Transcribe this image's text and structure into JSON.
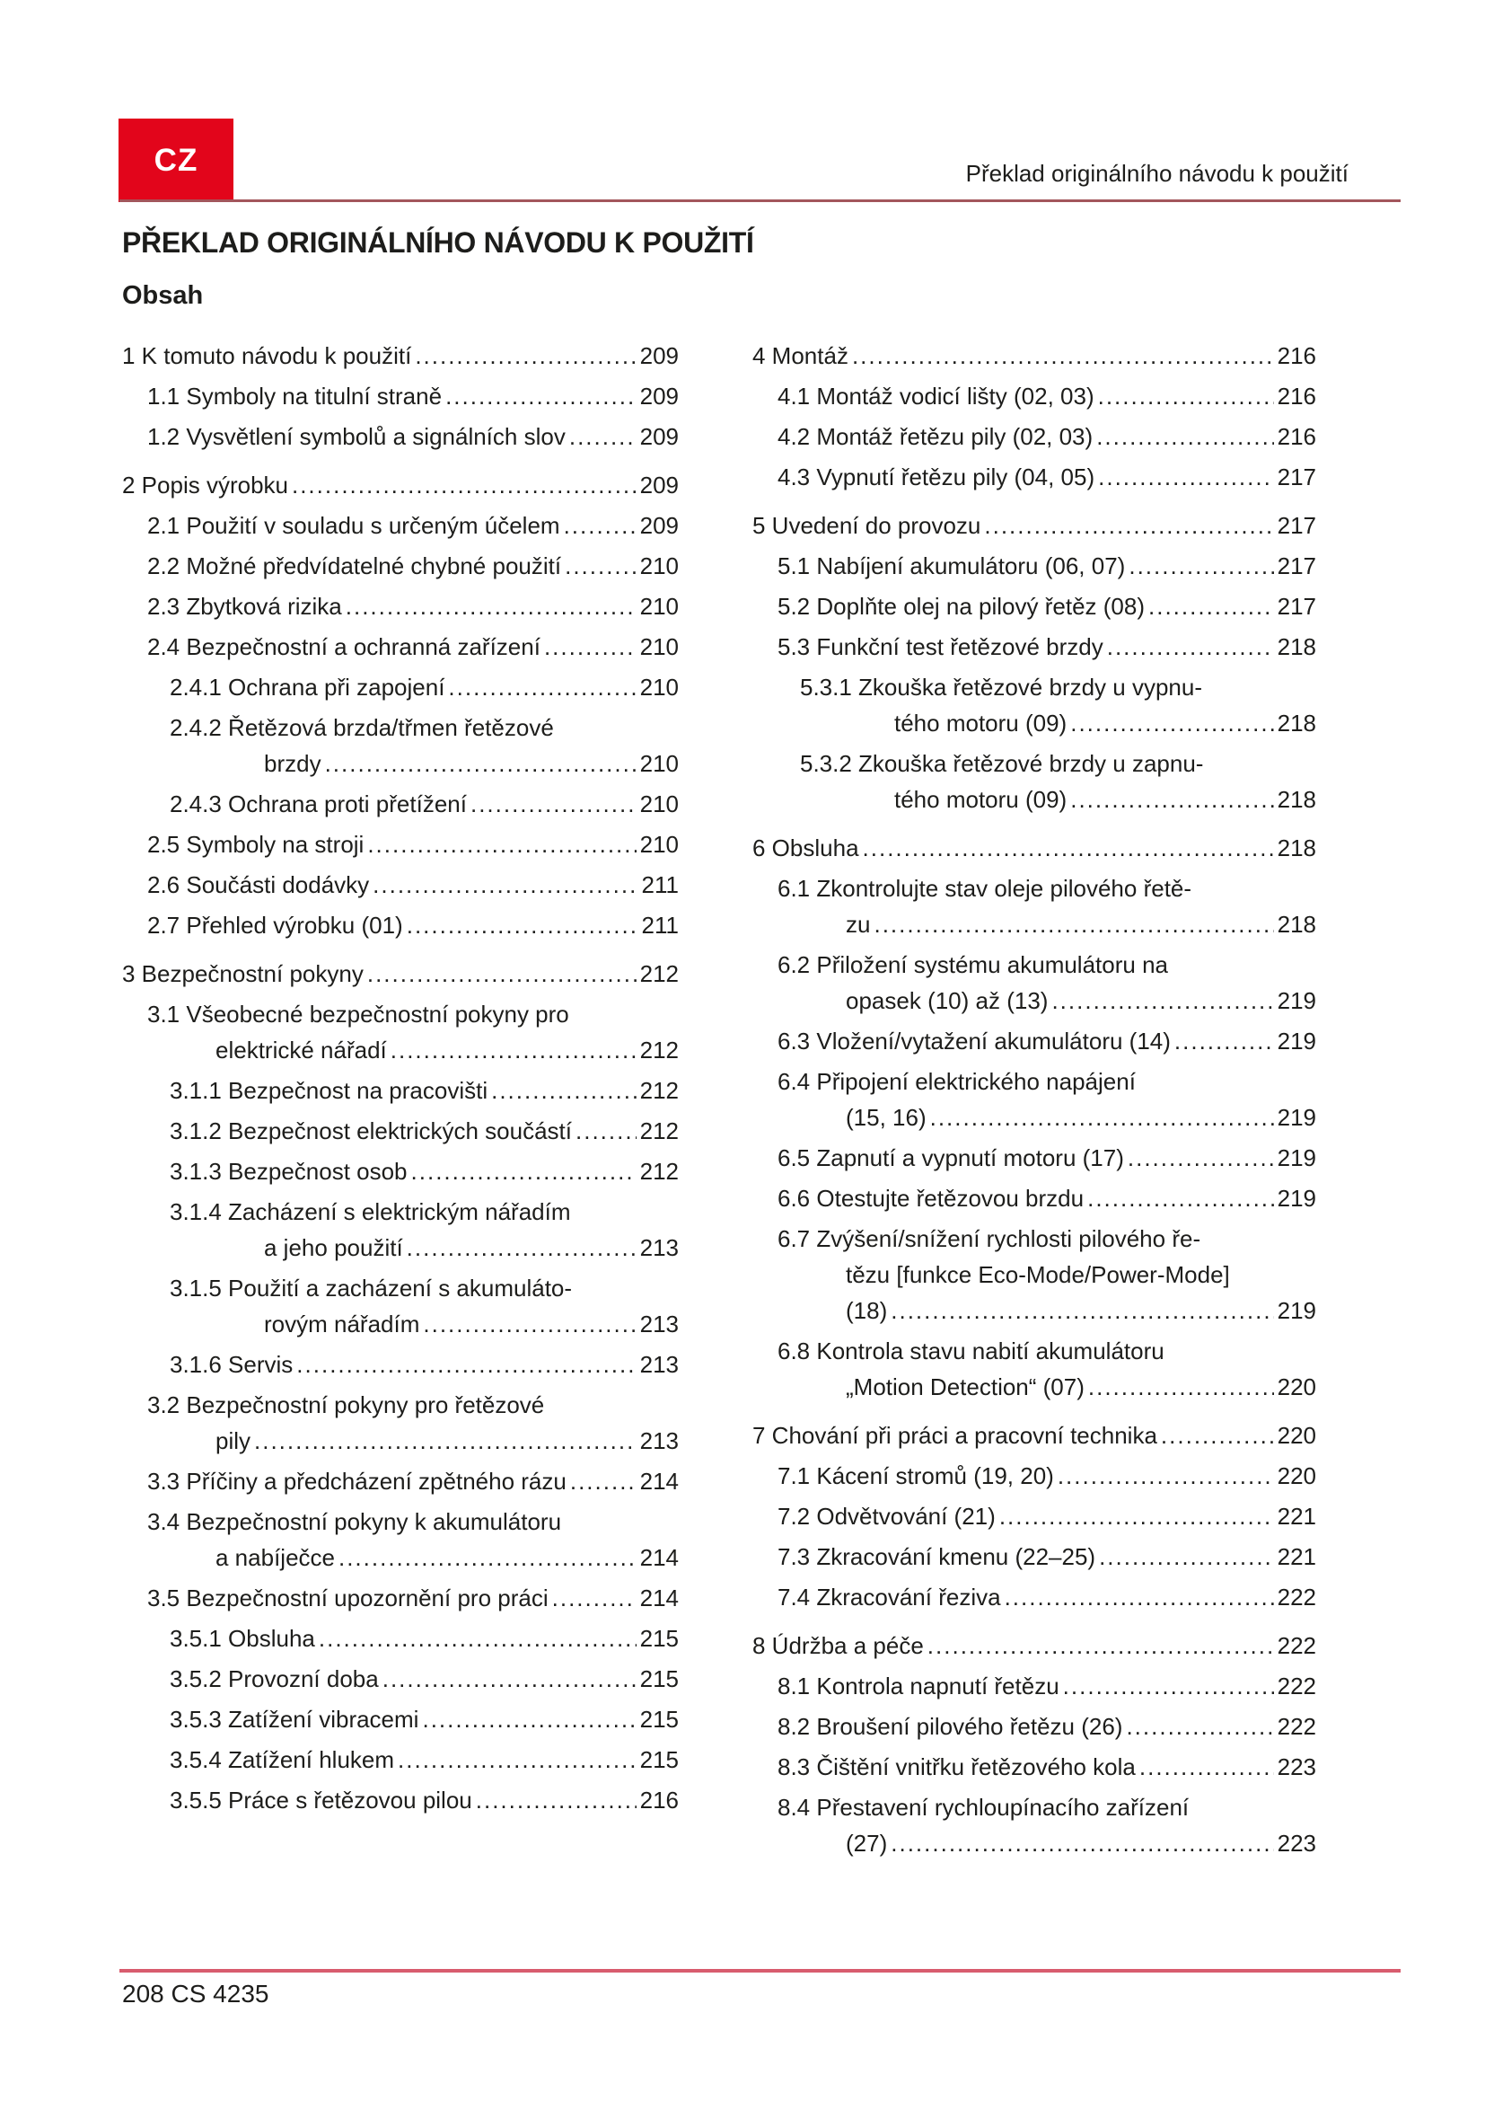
{
  "page": {
    "lang_badge": "CZ",
    "header_right": "Překlad originálního návodu k použití",
    "title": "PŘEKLAD ORIGINÁLNÍHO NÁVODU K POUŽITÍ",
    "subtitle": "Obsah",
    "footer": "208 CS 4235"
  },
  "colors": {
    "badge_red": "#e2051b",
    "top_rule": "#a3565c",
    "bottom_rule": "#d85c6e",
    "text": "#1d1d1b"
  },
  "toc": {
    "left_column": [
      {
        "level": 1,
        "lines": [
          "1 K tomuto návodu k použití"
        ],
        "page": "209"
      },
      {
        "level": 2,
        "lines": [
          "1.1 Symboly na titulní straně"
        ],
        "page": "209"
      },
      {
        "level": 2,
        "lines": [
          "1.2 Vysvětlení symbolů a signálních slov"
        ],
        "page": "209"
      },
      {
        "level": 1,
        "lines": [
          "2 Popis výrobku"
        ],
        "page": "209"
      },
      {
        "level": 2,
        "lines": [
          "2.1 Použití v souladu s určeným účelem"
        ],
        "page": "209"
      },
      {
        "level": 2,
        "lines": [
          "2.2 Možné předvídatelné chybné použití"
        ],
        "page": "210"
      },
      {
        "level": 2,
        "lines": [
          "2.3 Zbytková rizika"
        ],
        "page": "210"
      },
      {
        "level": 2,
        "lines": [
          "2.4 Bezpečnostní a ochranná zařízení"
        ],
        "page": "210"
      },
      {
        "level": 3,
        "lines": [
          "2.4.1 Ochrana při zapojení"
        ],
        "page": "210"
      },
      {
        "level": 3,
        "lines": [
          "2.4.2 Řetězová brzda/třmen řetězové",
          "brzdy"
        ],
        "page": "210"
      },
      {
        "level": 3,
        "lines": [
          "2.4.3 Ochrana proti přetížení"
        ],
        "page": "210"
      },
      {
        "level": 2,
        "lines": [
          "2.5 Symboly na stroji"
        ],
        "page": "210"
      },
      {
        "level": 2,
        "lines": [
          "2.6 Součásti dodávky"
        ],
        "page": "211"
      },
      {
        "level": 2,
        "lines": [
          "2.7 Přehled výrobku (01)"
        ],
        "page": "211"
      },
      {
        "level": 1,
        "lines": [
          "3 Bezpečnostní pokyny"
        ],
        "page": "212"
      },
      {
        "level": 2,
        "lines": [
          "3.1 Všeobecné bezpečnostní pokyny pro",
          "elektrické nářadí"
        ],
        "page": "212"
      },
      {
        "level": 3,
        "lines": [
          "3.1.1 Bezpečnost na pracovišti"
        ],
        "page": "212"
      },
      {
        "level": 3,
        "lines": [
          "3.1.2 Bezpečnost elektrických součástí"
        ],
        "page": "212"
      },
      {
        "level": 3,
        "lines": [
          "3.1.3 Bezpečnost osob"
        ],
        "page": "212"
      },
      {
        "level": 3,
        "lines": [
          "3.1.4 Zacházení s elektrickým nářadím",
          "a jeho použití"
        ],
        "page": "213"
      },
      {
        "level": 3,
        "lines": [
          "3.1.5 Použití a zacházení s akumuláto-",
          "rovým nářadím"
        ],
        "page": "213"
      },
      {
        "level": 3,
        "lines": [
          "3.1.6 Servis"
        ],
        "page": "213"
      },
      {
        "level": 2,
        "lines": [
          "3.2 Bezpečnostní pokyny pro řetězové",
          "pily"
        ],
        "page": "213"
      },
      {
        "level": 2,
        "lines": [
          "3.3 Příčiny a předcházení zpětného rázu"
        ],
        "page": "214"
      },
      {
        "level": 2,
        "lines": [
          "3.4 Bezpečnostní pokyny k akumulátoru",
          "a nabíječce"
        ],
        "page": "214"
      },
      {
        "level": 2,
        "lines": [
          "3.5 Bezpečnostní upozornění pro práci"
        ],
        "page": "214"
      },
      {
        "level": 3,
        "lines": [
          "3.5.1 Obsluha"
        ],
        "page": "215"
      },
      {
        "level": 3,
        "lines": [
          "3.5.2 Provozní doba"
        ],
        "page": "215"
      },
      {
        "level": 3,
        "lines": [
          "3.5.3 Zatížení vibracemi"
        ],
        "page": "215"
      },
      {
        "level": 3,
        "lines": [
          "3.5.4 Zatížení hlukem"
        ],
        "page": "215"
      },
      {
        "level": 3,
        "lines": [
          "3.5.5 Práce s řetězovou pilou"
        ],
        "page": "216"
      }
    ],
    "right_column": [
      {
        "level": 1,
        "lines": [
          "4 Montáž"
        ],
        "page": "216"
      },
      {
        "level": 2,
        "lines": [
          "4.1 Montáž vodicí lišty (02, 03)"
        ],
        "page": "216"
      },
      {
        "level": 2,
        "lines": [
          "4.2 Montáž řetězu pily (02, 03)"
        ],
        "page": "216"
      },
      {
        "level": 2,
        "lines": [
          "4.3 Vypnutí řetězu pily (04, 05)"
        ],
        "page": "217"
      },
      {
        "level": 1,
        "lines": [
          "5 Uvedení do provozu"
        ],
        "page": "217"
      },
      {
        "level": 2,
        "lines": [
          "5.1 Nabíjení akumulátoru (06, 07)"
        ],
        "page": "217"
      },
      {
        "level": 2,
        "lines": [
          "5.2 Doplňte olej na pilový řetěz (08)"
        ],
        "page": "217"
      },
      {
        "level": 2,
        "lines": [
          "5.3 Funkční test řetězové brzdy"
        ],
        "page": "218"
      },
      {
        "level": 3,
        "lines": [
          "5.3.1 Zkouška řetězové brzdy u vypnu-",
          "tého motoru (09)"
        ],
        "page": "218"
      },
      {
        "level": 3,
        "lines": [
          "5.3.2 Zkouška řetězové brzdy u zapnu-",
          "tého motoru (09)"
        ],
        "page": "218"
      },
      {
        "level": 1,
        "lines": [
          "6 Obsluha"
        ],
        "page": "218"
      },
      {
        "level": 2,
        "lines": [
          "6.1 Zkontrolujte stav oleje pilového řetě-",
          "zu"
        ],
        "page": "218"
      },
      {
        "level": 2,
        "lines": [
          "6.2 Přiložení systému akumulátoru na",
          "opasek (10) až (13)"
        ],
        "page": "219"
      },
      {
        "level": 2,
        "lines": [
          "6.3 Vložení/vytažení akumulátoru (14)"
        ],
        "page": "219"
      },
      {
        "level": 2,
        "lines": [
          "6.4 Připojení elektrického napájení",
          "(15, 16)"
        ],
        "page": "219"
      },
      {
        "level": 2,
        "lines": [
          "6.5 Zapnutí a vypnutí motoru (17)"
        ],
        "page": "219"
      },
      {
        "level": 2,
        "lines": [
          "6.6 Otestujte řetězovou brzdu"
        ],
        "page": "219"
      },
      {
        "level": 2,
        "lines": [
          "6.7 Zvýšení/snížení rychlosti pilového ře-",
          "tězu [funkce Eco-Mode/Power-Mode]",
          "(18)"
        ],
        "page": "219"
      },
      {
        "level": 2,
        "lines": [
          "6.8 Kontrola stavu nabití akumulátoru",
          "„Motion Detection“ (07)"
        ],
        "page": "220"
      },
      {
        "level": 1,
        "lines": [
          "7 Chování při práci a pracovní technika"
        ],
        "page": "220"
      },
      {
        "level": 2,
        "lines": [
          "7.1 Kácení stromů (19, 20)"
        ],
        "page": "220"
      },
      {
        "level": 2,
        "lines": [
          "7.2 Odvětvování (21)"
        ],
        "page": "221"
      },
      {
        "level": 2,
        "lines": [
          "7.3 Zkracování kmenu (22–25)"
        ],
        "page": "221"
      },
      {
        "level": 2,
        "lines": [
          "7.4 Zkracování řeziva"
        ],
        "page": "222"
      },
      {
        "level": 1,
        "lines": [
          "8 Údržba a péče"
        ],
        "page": "222"
      },
      {
        "level": 2,
        "lines": [
          "8.1 Kontrola napnutí řetězu"
        ],
        "page": "222"
      },
      {
        "level": 2,
        "lines": [
          "8.2 Broušení pilového řetězu (26)"
        ],
        "page": "222"
      },
      {
        "level": 2,
        "lines": [
          "8.3 Čištění vnitřku řetězového kola"
        ],
        "page": "223"
      },
      {
        "level": 2,
        "lines": [
          "8.4 Přestavení rychloupínacího zařízení",
          "(27)"
        ],
        "page": "223"
      }
    ]
  }
}
